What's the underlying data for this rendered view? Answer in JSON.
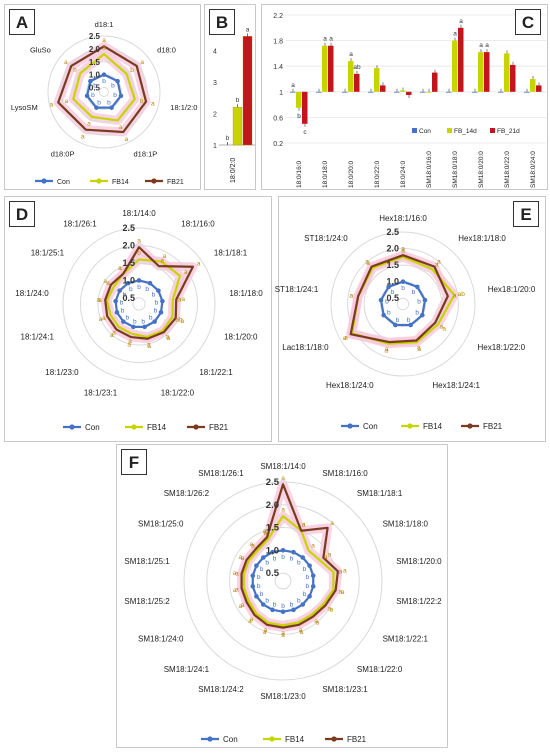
{
  "chart_data": [
    {
      "panel": "A",
      "type": "radar",
      "axes": [
        "d18:1",
        "d18:0",
        "18:1/2:0",
        "d18:1P",
        "d18:0P",
        "LysoSM",
        "GluSo"
      ],
      "ticks": [
        "0.5",
        "1.0",
        "1.5",
        "2.0",
        "2.5"
      ],
      "rmin": 0.5,
      "rmax": 2.5,
      "series": [
        {
          "name": "Con",
          "values": [
            1,
            1,
            1,
            1,
            1,
            1,
            1
          ],
          "letters": [
            "b",
            "b",
            "b",
            "b",
            "b",
            "b",
            "b"
          ]
        },
        {
          "name": "FB14",
          "values": [
            1.8,
            1.45,
            1.55,
            1.55,
            1.4,
            1.55,
            1.5
          ],
          "letters": [
            "a",
            "b",
            "b",
            "a",
            "a",
            "a",
            "b"
          ]
        },
        {
          "name": "FB21",
          "values": [
            2.1,
            1.95,
            2.0,
            2.05,
            1.95,
            2.15,
            1.95
          ],
          "letters": [
            "a",
            "a",
            "a",
            "a",
            "a",
            "a",
            "a"
          ]
        }
      ],
      "legend": [
        "Con",
        "FB14",
        "FB21"
      ]
    },
    {
      "panel": "B",
      "type": "bar",
      "categories": [
        "18:0/2:0"
      ],
      "yticks": [
        "1",
        "2",
        "3",
        "4",
        "5"
      ],
      "ylim": [
        1,
        5
      ],
      "series": [
        {
          "name": "Con",
          "values": [
            1.0
          ],
          "letters": [
            "b"
          ]
        },
        {
          "name": "FB14",
          "values": [
            2.2
          ],
          "letters": [
            "b"
          ]
        },
        {
          "name": "FB21",
          "values": [
            4.45
          ],
          "letters": [
            "a"
          ]
        }
      ]
    },
    {
      "panel": "C",
      "type": "bar",
      "categories": [
        "18:0/16:0",
        "18:0/18:0",
        "18:0/20:0",
        "18:0/22:0",
        "18:0/24:0",
        "SM18:0/16:0",
        "SM18:0/18:0",
        "SM18:0/20:0",
        "SM18:0/22:0",
        "SM18:0/24:0"
      ],
      "yticks": [
        "0.2",
        "0.6",
        "1",
        "1.4",
        "1.8",
        "2.2"
      ],
      "ylim": [
        0.2,
        2.2
      ],
      "series": [
        {
          "name": "Con",
          "values": [
            1,
            1,
            1,
            1,
            1,
            1,
            1,
            1,
            1,
            1
          ],
          "letters": [
            "a",
            "",
            "",
            "",
            "",
            "",
            "",
            "",
            "",
            ""
          ]
        },
        {
          "name": "FB_14d",
          "values": [
            0.75,
            1.72,
            1.48,
            1.37,
            1.02,
            1.0,
            1.8,
            1.62,
            1.6,
            1.2
          ],
          "letters": [
            "b",
            "a",
            "a",
            "",
            "",
            "",
            "a",
            "a",
            "",
            ""
          ]
        },
        {
          "name": "FB_21d",
          "values": [
            0.5,
            1.72,
            1.28,
            1.1,
            0.95,
            1.3,
            2.0,
            1.62,
            1.42,
            1.1
          ],
          "letters": [
            "c",
            "a",
            "ab",
            "",
            "",
            "",
            "a",
            "a",
            "",
            ""
          ]
        }
      ],
      "legend": [
        "Con",
        "FB_14d",
        "FB_21d"
      ]
    },
    {
      "panel": "D",
      "type": "radar",
      "axes": [
        "18:1/14:0",
        "18:1/16:0",
        "18:1/18:1",
        "18:1/18:0",
        "18:1/20:0",
        "18:1/22:1",
        "18:1/22:0",
        "18:1/23:1",
        "18:1/23:0",
        "18:1/24:1",
        "18:1/24:0",
        "18:1/25:1",
        "18:1/26:1"
      ],
      "ticks": [
        "0.5",
        "1.0",
        "1.5",
        "2.0",
        "2.5"
      ],
      "rmin": 0.5,
      "rmax": 2.5,
      "series": [
        {
          "name": "Con",
          "values": [
            1,
            1,
            1,
            1,
            1,
            1,
            1,
            1,
            1,
            1,
            1,
            1,
            1
          ],
          "letters": [
            "b",
            "b",
            "b",
            "b",
            "b",
            "b",
            "b",
            "b",
            "b",
            "b",
            "b",
            "b",
            "b"
          ]
        },
        {
          "name": "FB14",
          "values": [
            1.6,
            1.7,
            1.75,
            1.3,
            1.35,
            1.35,
            1.3,
            1.2,
            1.2,
            1.2,
            1.25,
            1.2,
            1.3
          ],
          "letters": [
            "b",
            "a",
            "a",
            "a",
            "ab",
            "a",
            "a",
            "a",
            "a",
            "a",
            "a",
            "a",
            "a"
          ]
        },
        {
          "name": "FB21",
          "values": [
            1.95,
            1.55,
            2.2,
            1.4,
            1.45,
            1.4,
            1.35,
            1.3,
            1.3,
            1.3,
            1.3,
            1.3,
            1.3
          ],
          "letters": [
            "a",
            "a",
            "a",
            "a",
            "a",
            "a",
            "a",
            "a",
            "a",
            "a",
            "a",
            "a",
            "a"
          ]
        }
      ],
      "legend": [
        "Con",
        "FB14",
        "FB21"
      ]
    },
    {
      "panel": "E",
      "type": "radar",
      "axes": [
        "Hex18:1/16:0",
        "Hex18:1/18:0",
        "Hex18:1/20:0",
        "Hex18:1/22:0",
        "Hex18:1/24:1",
        "Hex18:1/24:0",
        "Lac18:1/18:0",
        "ST18:1/24:1",
        "ST18:1/24:0"
      ],
      "ticks": [
        "0.5",
        "1.0",
        "1.5",
        "2.0",
        "2.5"
      ],
      "rmin": 0.5,
      "rmax": 2.5,
      "series": [
        {
          "name": "Con",
          "values": [
            1,
            1,
            1,
            1,
            1,
            1,
            1,
            1,
            1
          ],
          "letters": [
            "b",
            "b",
            "b",
            "b",
            "b",
            "b",
            "b",
            "b",
            "b"
          ]
        },
        {
          "name": "FB14",
          "values": [
            1.75,
            1.7,
            1.9,
            1.55,
            1.55,
            1.6,
            2.1,
            1.7,
            1.75
          ],
          "letters": [
            "a",
            "a",
            "ab",
            "a",
            "a",
            "a",
            "a",
            "a",
            "a"
          ]
        },
        {
          "name": "FB21",
          "values": [
            1.8,
            1.8,
            1.7,
            1.45,
            1.5,
            1.55,
            2.15,
            1.7,
            1.8
          ],
          "letters": [
            "a",
            "a",
            "a",
            "a",
            "a",
            "a",
            "a",
            "a",
            "a"
          ]
        }
      ],
      "legend": [
        "Con",
        "FB14",
        "FB21"
      ]
    },
    {
      "panel": "F",
      "type": "radar",
      "axes": [
        "SM18:1/14:0",
        "SM18:1/16:0",
        "SM18:1/18:1",
        "SM18:1/18:0",
        "SM18:1/20:0",
        "SM18:1/22:2",
        "SM18:1/22:1",
        "SM18:1/22:0",
        "SM18:1/23:1",
        "SM18:1/23:0",
        "SM18:1/24:2",
        "SM18:1/24:1",
        "SM18:1/24:0",
        "SM18:1/25:2",
        "SM18:1/25:1",
        "SM18:1/25:0",
        "SM18:1/26:2",
        "SM18:1/26:1"
      ],
      "ticks": [
        "0.5",
        "1.0",
        "1.5",
        "2.0",
        "2.5"
      ],
      "rmin": 0.5,
      "rmax": 2.5,
      "series": [
        {
          "name": "Con",
          "values": [
            1,
            1,
            1,
            1,
            1,
            1,
            1,
            1,
            1,
            1,
            1,
            1,
            1,
            1,
            1,
            1,
            1,
            1
          ],
          "letters": [
            "b",
            "b",
            "b",
            "b",
            "b",
            "b",
            "b",
            "b",
            "b",
            "b",
            "b",
            "b",
            "b",
            "b",
            "b",
            "b",
            "b",
            "b"
          ]
        },
        {
          "name": "FB14",
          "values": [
            1.75,
            1.5,
            1.2,
            1.25,
            1.45,
            1.45,
            1.35,
            1.3,
            1.3,
            1.3,
            1.3,
            1.25,
            1.2,
            1.2,
            1.2,
            1.2,
            1.2,
            1.3
          ],
          "letters": [
            "a",
            "a",
            "a",
            "a",
            "a",
            "a",
            "a",
            "a",
            "a",
            "a",
            "a",
            "a",
            "a",
            "a",
            "a",
            "a",
            "a",
            "a"
          ]
        },
        {
          "name": "FB21",
          "values": [
            2.45,
            1.5,
            1.85,
            1.35,
            1.55,
            1.5,
            1.4,
            1.35,
            1.35,
            1.35,
            1.35,
            1.3,
            1.25,
            1.25,
            1.25,
            1.25,
            1.25,
            1.35
          ],
          "letters": [
            "a",
            "a",
            "a",
            "a",
            "a",
            "a",
            "a",
            "a",
            "a",
            "a",
            "a",
            "a",
            "a",
            "a",
            "a",
            "a",
            "a",
            "a"
          ]
        }
      ],
      "legend": [
        "Con",
        "FB14",
        "FB21"
      ]
    }
  ],
  "colors": {
    "Con": "#4472c4",
    "FB14": "#c8d400",
    "FB21": "#7a3b1f",
    "FB21_bar": "#c0161c",
    "letter_b": "#4472c4",
    "letter_a": "#b8860b",
    "glow": "#f7c8dc"
  }
}
